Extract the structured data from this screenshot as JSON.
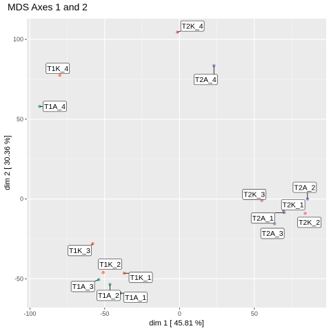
{
  "chart_data": {
    "type": "scatter",
    "title": "MDS Axes 1 and 2",
    "xlabel": "dim 1 [ 45.81 %]",
    "ylabel": "dim 2 [ 30.36 %]",
    "xlim": [
      -102,
      98
    ],
    "ylim": [
      -68,
      113
    ],
    "xticks": [
      -100,
      -50,
      0,
      50
    ],
    "yticks": [
      -50,
      0,
      50,
      100
    ],
    "grid": true,
    "legend": "none",
    "points": [
      {
        "label": "T2K_4",
        "x": -1.5,
        "y": 104.5,
        "color": "#e78ac3"
      },
      {
        "label": "T2A_4",
        "x": 23,
        "y": 83.5,
        "color": "#8da0cb"
      },
      {
        "label": "T1K_4",
        "x": -80,
        "y": 77.5,
        "color": "#fc8d62"
      },
      {
        "label": "T1A_4",
        "x": -93.5,
        "y": 58,
        "color": "#66c2a5"
      },
      {
        "label": "T2K_3",
        "x": 55,
        "y": -1,
        "color": "#e78ac3"
      },
      {
        "label": "T2A_2",
        "x": 85.5,
        "y": 0,
        "color": "#8da0cb"
      },
      {
        "label": "T2K_1",
        "x": 69.5,
        "y": -7.5,
        "color": "#e78ac3"
      },
      {
        "label": "T2A_1",
        "x": 70,
        "y": -8.5,
        "color": "#8da0cb"
      },
      {
        "label": "T2K_2",
        "x": 84,
        "y": -9,
        "color": "#e78ac3"
      },
      {
        "label": "T2A_3",
        "x": 63.5,
        "y": -15.5,
        "color": "#8da0cb"
      },
      {
        "label": "T1K_3",
        "x": -58,
        "y": -28,
        "color": "#fc8d62"
      },
      {
        "label": "T1K_1",
        "x": -37,
        "y": -46.5,
        "color": "#fc8d62"
      },
      {
        "label": "T1K_2",
        "x": -51,
        "y": -46,
        "color": "#fc8d62"
      },
      {
        "label": "T1A_3",
        "x": -54,
        "y": -50.5,
        "color": "#66c2a5"
      },
      {
        "label": "T1A_2",
        "x": -46.5,
        "y": -53.5,
        "color": "#66c2a5"
      },
      {
        "label": "T1A_1",
        "x": -39.5,
        "y": -59,
        "color": "#66c2a5"
      }
    ]
  }
}
